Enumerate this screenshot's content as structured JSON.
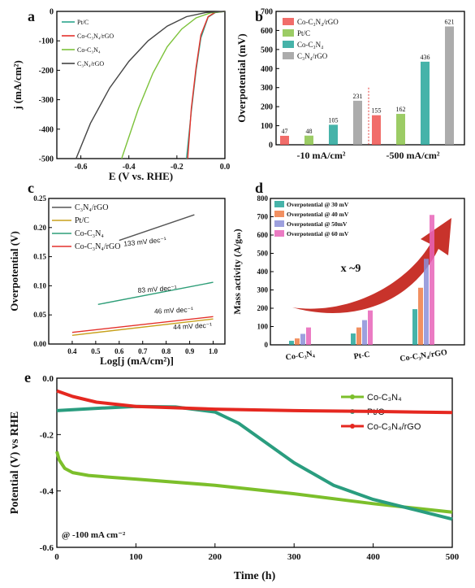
{
  "panels": {
    "a": "a",
    "b": "b",
    "c": "c",
    "d": "d",
    "e": "e"
  },
  "chart_data": [
    {
      "id": "a",
      "type": "line",
      "xlabel": "E  (V vs. RHE)",
      "ylabel": "j (mA/cm²)",
      "xlim": [
        -0.7,
        0.0
      ],
      "ylim": [
        -500,
        0
      ],
      "xticks": [
        "-0.6",
        "-0.4",
        "-0.2",
        "0.0"
      ],
      "yticks": [
        "0",
        "-100",
        "-200",
        "-300",
        "-400",
        "-500"
      ],
      "legend_position": "top-left",
      "series": [
        {
          "name": "Pt/C",
          "color": "#2ca58d",
          "x": [
            0,
            -0.04,
            -0.07,
            -0.1,
            -0.12,
            -0.14,
            -0.16
          ],
          "y": [
            0,
            -4,
            -20,
            -90,
            -200,
            -340,
            -500
          ]
        },
        {
          "name": "Co-C₃N₄/rGO",
          "color": "#e4312b",
          "x": [
            0,
            -0.04,
            -0.07,
            -0.1,
            -0.12,
            -0.14,
            -0.155
          ],
          "y": [
            0,
            -3,
            -18,
            -80,
            -190,
            -330,
            -500
          ]
        },
        {
          "name": "Co-C₃N₄",
          "color": "#7cc23a",
          "x": [
            0,
            -0.06,
            -0.12,
            -0.18,
            -0.24,
            -0.3,
            -0.36,
            -0.43
          ],
          "y": [
            0,
            -5,
            -22,
            -60,
            -120,
            -210,
            -330,
            -500
          ]
        },
        {
          "name": "C₃N₄/rGO",
          "color": "#444444",
          "x": [
            0,
            -0.08,
            -0.16,
            -0.24,
            -0.32,
            -0.4,
            -0.48,
            -0.56,
            -0.62
          ],
          "y": [
            0,
            -4,
            -18,
            -50,
            -100,
            -170,
            -260,
            -380,
            -500
          ]
        }
      ]
    },
    {
      "id": "b",
      "type": "bar",
      "ylabel": "Overpotential (mV)",
      "ylim": [
        0,
        700
      ],
      "yticks": [
        "0",
        "100",
        "200",
        "300",
        "400",
        "500",
        "600",
        "700"
      ],
      "categories": [
        "-10 mA/cm²",
        "-500 mA/cm²"
      ],
      "legend_position": "top-left",
      "series": [
        {
          "name": "Co-C₃N₄/rGO",
          "color": "#ef5350",
          "values": [
            47,
            155
          ]
        },
        {
          "name": "Pt/C",
          "color": "#8bc34a",
          "values": [
            48,
            162
          ]
        },
        {
          "name": "Co-C₃N₄",
          "color": "#26a69a",
          "values": [
            105,
            436
          ]
        },
        {
          "name": "C₃N₄/rGO",
          "color": "#9e9e9e",
          "values": [
            231,
            621
          ]
        }
      ]
    },
    {
      "id": "c",
      "type": "line",
      "xlabel": "Log[j (mA/cm²)]",
      "ylabel": "Overpotential (V)",
      "xlim": [
        0.3,
        1.05
      ],
      "ylim": [
        0.0,
        0.25
      ],
      "xticks": [
        "0.4",
        "0.5",
        "0.6",
        "0.7",
        "0.8",
        "0.9",
        "1.0"
      ],
      "yticks": [
        "0.00",
        "0.05",
        "0.10",
        "0.15",
        "0.20",
        "0.25"
      ],
      "legend_position": "top-left",
      "series": [
        {
          "name": "C₃N₄/rGO",
          "color": "#555555",
          "x": [
            0.6,
            0.92
          ],
          "y": [
            0.178,
            0.222
          ],
          "annotation": "133 mV dec⁻¹"
        },
        {
          "name": "Pt/C",
          "color": "#c8a11c",
          "x": [
            0.4,
            1.0
          ],
          "y": [
            0.015,
            0.043
          ],
          "annotation": "46 mV dec⁻¹"
        },
        {
          "name": "Co-C₃N₄",
          "color": "#2e9e78",
          "x": [
            0.51,
            1.0
          ],
          "y": [
            0.068,
            0.106
          ],
          "annotation": "83 mV dec⁻¹"
        },
        {
          "name": "Co-C₃N₄/rGO",
          "color": "#e4312b",
          "x": [
            0.4,
            1.0
          ],
          "y": [
            0.02,
            0.047
          ],
          "annotation": "44 mV dec⁻¹"
        }
      ]
    },
    {
      "id": "d",
      "type": "bar",
      "ylabel": "Mass activity (A/gₘ)",
      "ylim": [
        0,
        800
      ],
      "yticks": [
        "0",
        "100",
        "200",
        "300",
        "400",
        "500",
        "600",
        "700",
        "800"
      ],
      "categories": [
        "Co-C₃N₄",
        "Pt-C",
        "Co-C₃N₄/rGO"
      ],
      "annotation": "x ~9",
      "legend_position": "top-left",
      "series": [
        {
          "name": "Overpotential @ 30 mV",
          "color": "#26a69a",
          "values": [
            22,
            62,
            195
          ]
        },
        {
          "name": "Overpotential @ 40 mV",
          "color": "#ef7d45",
          "values": [
            35,
            95,
            312
          ]
        },
        {
          "name": "Overpotential @ 50mV",
          "color": "#8c8fd8",
          "values": [
            60,
            135,
            470
          ]
        },
        {
          "name": "Overpotential @ 60 mV",
          "color": "#e864b8",
          "values": [
            95,
            188,
            710
          ]
        }
      ]
    },
    {
      "id": "e",
      "type": "line",
      "xlabel": "Time (h)",
      "ylabel": "Potential (V) vs RHE",
      "xlim": [
        0,
        500
      ],
      "ylim": [
        -0.6,
        0.0
      ],
      "xticks": [
        "0",
        "100",
        "200",
        "300",
        "400",
        "500"
      ],
      "yticks": [
        "0.0",
        "-0.2",
        "-0.4",
        "-0.6"
      ],
      "annotation": "@ -100 mA cm⁻²",
      "legend_position": "top-right",
      "series": [
        {
          "name": "Co-C₃N₄",
          "color": "#7cbf2b",
          "x": [
            0,
            3,
            10,
            20,
            40,
            70,
            100,
            200,
            300,
            400,
            500
          ],
          "y": [
            -0.26,
            -0.29,
            -0.32,
            -0.335,
            -0.345,
            -0.352,
            -0.358,
            -0.38,
            -0.41,
            -0.445,
            -0.475
          ]
        },
        {
          "name": "Pt/C",
          "color": "#2a9d7f",
          "x": [
            0,
            50,
            100,
            150,
            200,
            230,
            260,
            300,
            350,
            400,
            450,
            500
          ],
          "y": [
            -0.115,
            -0.107,
            -0.1,
            -0.102,
            -0.12,
            -0.16,
            -0.22,
            -0.3,
            -0.38,
            -0.43,
            -0.465,
            -0.5
          ]
        },
        {
          "name": "Co-C₃N₄/rGO",
          "color": "#e52820",
          "x": [
            0,
            20,
            50,
            100,
            200,
            300,
            400,
            500
          ],
          "y": [
            -0.045,
            -0.065,
            -0.085,
            -0.1,
            -0.11,
            -0.115,
            -0.118,
            -0.122
          ]
        }
      ]
    }
  ]
}
